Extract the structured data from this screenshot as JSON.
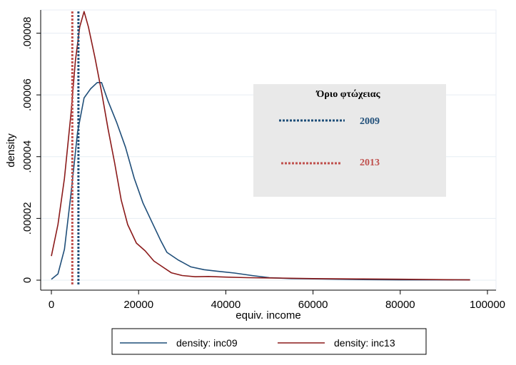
{
  "chart_data": {
    "type": "line",
    "ylabel": "density",
    "xlabel": "equiv. income",
    "xlim": [
      0,
      100000
    ],
    "ylim": [
      0,
      8.75e-05
    ],
    "x_ticks": [
      {
        "value": 0,
        "label": "0"
      },
      {
        "value": 20000,
        "label": "20000"
      },
      {
        "value": 40000,
        "label": "40000"
      },
      {
        "value": 60000,
        "label": "60000"
      },
      {
        "value": 80000,
        "label": "80000"
      },
      {
        "value": 100000,
        "label": "100000"
      }
    ],
    "y_ticks": [
      {
        "value": 0,
        "label": "0"
      },
      {
        "value": 2e-05,
        "label": ".00002"
      },
      {
        "value": 4e-05,
        "label": ".00004"
      },
      {
        "value": 6e-05,
        "label": ".00006"
      },
      {
        "value": 8e-05,
        "label": ".00008"
      }
    ],
    "grid": "horizontal",
    "legend_position": "bottom",
    "series": [
      {
        "name": "density: inc09",
        "color": "#1f4e79",
        "points": [
          [
            0,
            3e-07
          ],
          [
            1500,
            2e-06
          ],
          [
            3000,
            1e-05
          ],
          [
            4500,
            2.8e-05
          ],
          [
            6000,
            4.8e-05
          ],
          [
            7500,
            5.9e-05
          ],
          [
            9000,
            6.2e-05
          ],
          [
            10500,
            6.4e-05
          ],
          [
            11500,
            6.4e-05
          ],
          [
            13000,
            5.8e-05
          ],
          [
            15000,
            5.1e-05
          ],
          [
            17000,
            4.3e-05
          ],
          [
            19000,
            3.3e-05
          ],
          [
            21000,
            2.5e-05
          ],
          [
            23000,
            1.9e-05
          ],
          [
            25000,
            1.3e-05
          ],
          [
            26500,
            9e-06
          ],
          [
            29000,
            6.6e-06
          ],
          [
            32000,
            4.3e-06
          ],
          [
            35000,
            3.4e-06
          ],
          [
            38000,
            2.9e-06
          ],
          [
            42000,
            2.3e-06
          ],
          [
            46000,
            1.5e-06
          ],
          [
            50000,
            8e-07
          ],
          [
            55000,
            5e-07
          ],
          [
            62000,
            4e-07
          ],
          [
            70000,
            2e-07
          ],
          [
            80000,
            1e-07
          ],
          [
            96000,
            1e-07
          ]
        ]
      },
      {
        "name": "density: inc13",
        "color": "#8b1a1a",
        "points": [
          [
            0,
            7.8e-06
          ],
          [
            1500,
            1.8e-05
          ],
          [
            3000,
            3.3e-05
          ],
          [
            4500,
            5.4e-05
          ],
          [
            5500,
            7.1e-05
          ],
          [
            6500,
            8.2e-05
          ],
          [
            7500,
            8.7e-05
          ],
          [
            8500,
            8.2e-05
          ],
          [
            10000,
            7.2e-05
          ],
          [
            11500,
            6.1e-05
          ],
          [
            13000,
            4.9e-05
          ],
          [
            14500,
            3.8e-05
          ],
          [
            16000,
            2.6e-05
          ],
          [
            17500,
            1.8e-05
          ],
          [
            19500,
            1.2e-05
          ],
          [
            21500,
            9.5e-06
          ],
          [
            23500,
            6.2e-06
          ],
          [
            25500,
            4.3e-06
          ],
          [
            27500,
            2.4e-06
          ],
          [
            30000,
            1.5e-06
          ],
          [
            33000,
            1.1e-06
          ],
          [
            36000,
            1.2e-06
          ],
          [
            40000,
            1e-06
          ],
          [
            45000,
            8e-07
          ],
          [
            52000,
            7e-07
          ],
          [
            60000,
            5e-07
          ],
          [
            70000,
            4e-07
          ],
          [
            80000,
            3e-07
          ],
          [
            96000,
            1e-07
          ]
        ]
      }
    ],
    "reference_lines": [
      {
        "year": "2009",
        "x": 6200,
        "color": "#1f4e79"
      },
      {
        "year": "2013",
        "x": 4800,
        "color": "#c0504d"
      }
    ],
    "annotation_box": {
      "title": "Όριο φτώχειας",
      "entries": [
        {
          "label": "2009",
          "color": "#1f4e79"
        },
        {
          "label": "2013",
          "color": "#c0504d"
        }
      ]
    }
  }
}
